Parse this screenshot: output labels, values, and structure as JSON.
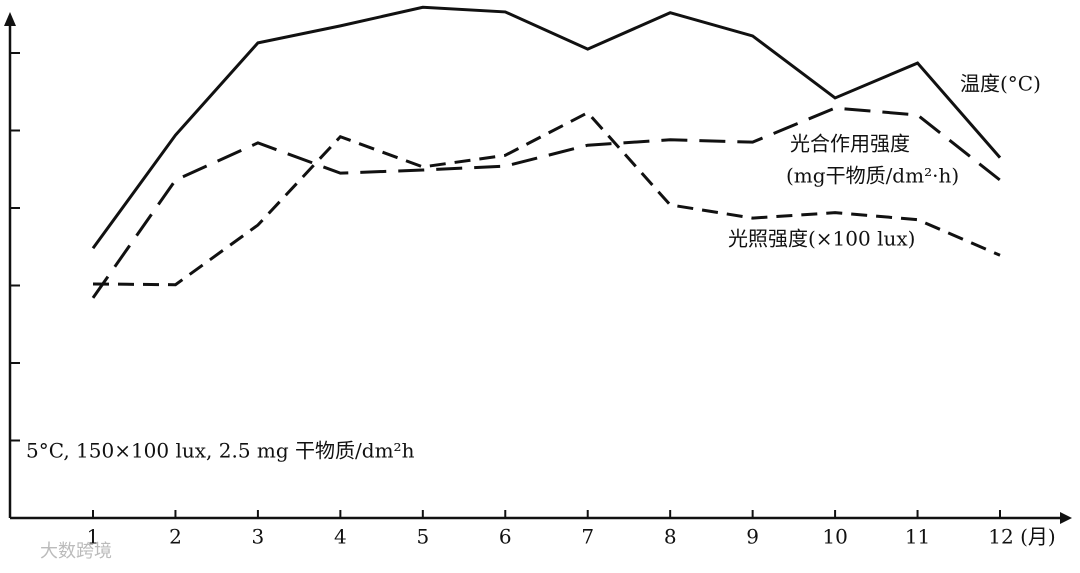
{
  "chart_data": {
    "type": "line",
    "annotation": "5°C, 150×100 lux, 2.5 mg 干物质/dm²h",
    "watermark": "大数跨境",
    "categories": [
      "1",
      "2",
      "3",
      "4",
      "5",
      "6",
      "7",
      "8",
      "9",
      "10",
      "11",
      "12 (月)"
    ],
    "series": [
      {
        "name": "温度(°C)",
        "color": "#111111",
        "dash": "solid",
        "values": [
          3.48,
          4.94,
          6.13,
          6.35,
          6.59,
          6.53,
          6.05,
          6.52,
          6.22,
          5.42,
          5.87,
          4.65
        ]
      },
      {
        "name": "光合作用强度",
        "unit": "(mg干物质/dm²·h)",
        "color": "#111111",
        "dash": "long",
        "values": [
          2.84,
          4.36,
          4.84,
          4.45,
          4.49,
          4.54,
          4.81,
          4.88,
          4.85,
          5.29,
          5.2,
          4.36
        ]
      },
      {
        "name": "光照强度(×100 lux)",
        "color": "#111111",
        "dash": "short",
        "values": [
          3.02,
          3.01,
          3.78,
          4.92,
          4.53,
          4.68,
          5.23,
          4.04,
          3.87,
          3.94,
          3.85,
          3.39
        ]
      }
    ],
    "ylim": [
      0,
      6.7
    ],
    "yticks": [
      1,
      2,
      3,
      4,
      5,
      6
    ]
  }
}
